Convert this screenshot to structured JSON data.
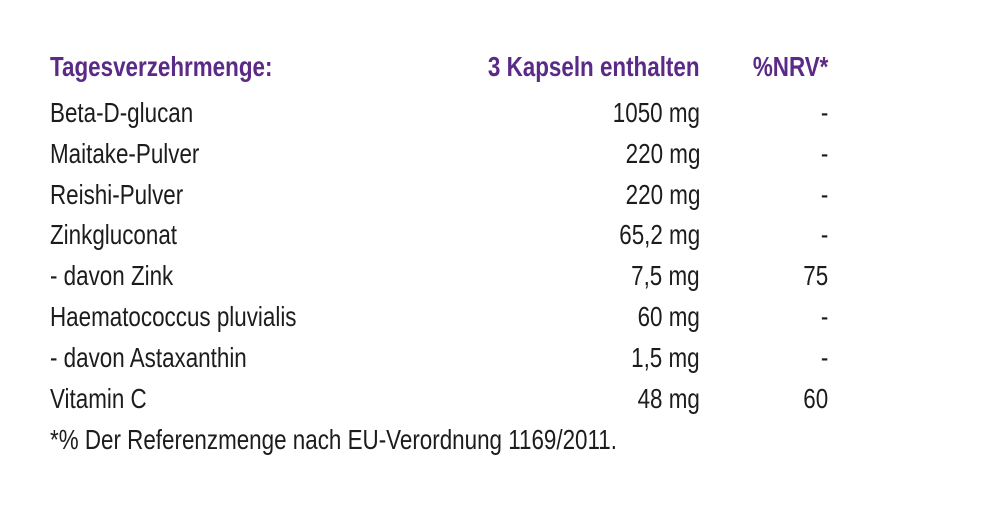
{
  "table": {
    "header": [
      "Tagesverzehrmenge:",
      "3 Kapseln enthalten",
      "%NRV*"
    ],
    "rows": [
      [
        "Beta-D-glucan",
        "1050 mg",
        "-"
      ],
      [
        "Maitake-Pulver",
        "220 mg",
        "-"
      ],
      [
        "Reishi-Pulver",
        "220 mg",
        "-"
      ],
      [
        "Zinkgluconat",
        "65,2 mg",
        "-"
      ],
      [
        "- davon Zink",
        "7,5 mg",
        "75"
      ],
      [
        "Haematococcus pluvialis",
        "60 mg",
        "-"
      ],
      [
        "- davon Astaxanthin",
        "1,5 mg",
        "-"
      ],
      [
        "Vitamin C",
        "48 mg",
        "60"
      ]
    ],
    "footnote": "*% Der Referenzmenge nach EU-Verordnung 1169/2011."
  }
}
